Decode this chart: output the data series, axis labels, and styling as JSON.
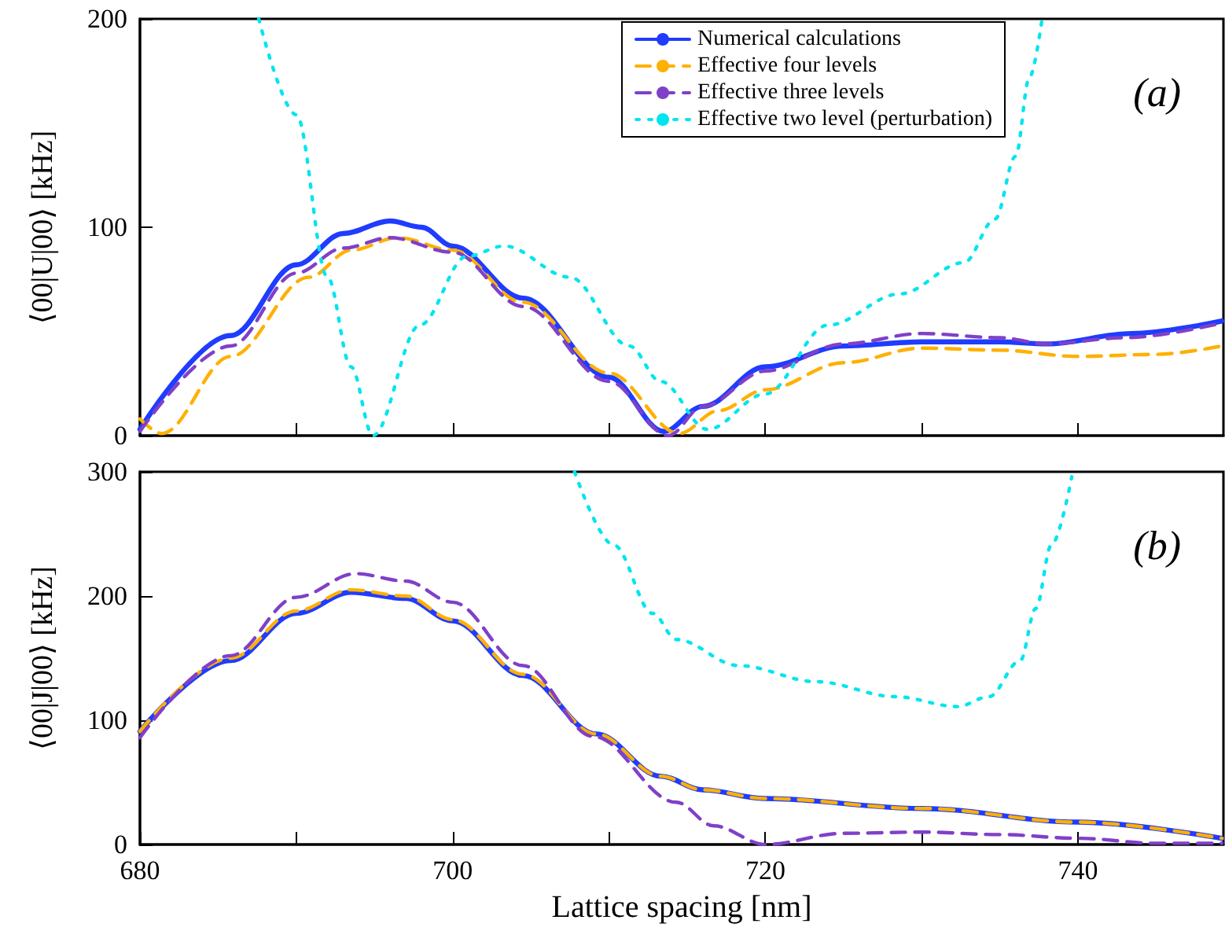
{
  "chart_data": [
    {
      "type": "line",
      "ylabel": "⟨00|U|00⟩ [kHz]",
      "xlim": [
        680,
        749.3
      ],
      "xticks": [
        680,
        690,
        700,
        710,
        720,
        730,
        740
      ],
      "ylim": [
        0,
        200
      ],
      "yticks": [
        0,
        100,
        200
      ],
      "tick_labels": "y",
      "legend": "top right",
      "grid": false,
      "annotations": [
        "(a)"
      ],
      "series": [
        {
          "name": "Numerical calculations",
          "color": "#1f3cff",
          "line_style": "solid",
          "x": [
            680,
            685.8,
            690,
            693,
            696,
            698,
            700,
            704.5,
            710,
            713.5,
            716,
            720,
            725,
            730,
            735,
            738,
            743.4,
            749.2
          ],
          "values": [
            3,
            48,
            82,
            97,
            103,
            100,
            91,
            66,
            28,
            2,
            14,
            33,
            43,
            45,
            45,
            44,
            49,
            55
          ]
        },
        {
          "name": "Effective four levels",
          "color": "#ffb000",
          "line_style": "dashed",
          "x": [
            680,
            681.4,
            685.8,
            690.8,
            693.5,
            696.5,
            700,
            704.5,
            710,
            714.5,
            717,
            720,
            725,
            730,
            735,
            740,
            745,
            749.2
          ],
          "values": [
            8,
            1,
            38,
            76,
            89,
            95,
            89,
            64,
            30,
            1,
            12,
            22,
            35,
            42,
            41,
            38,
            39,
            43
          ]
        },
        {
          "name": "Effective three levels",
          "color": "#8040c8",
          "line_style": "dashed",
          "x": [
            680,
            685.8,
            690,
            693,
            696,
            700,
            704.5,
            710,
            713.8,
            716,
            720,
            725,
            730,
            735,
            738,
            743,
            749.2
          ],
          "values": [
            2,
            43,
            78,
            90,
            95,
            88,
            62,
            26,
            0,
            14,
            31,
            44,
            49,
            47,
            44,
            47,
            54
          ]
        },
        {
          "name": "Effective two level (perturbation)",
          "color": "#00e5ee",
          "line_style": "dotted",
          "x": [
            687.6,
            690,
            692,
            693.5,
            694.9,
            697.9,
            700.9,
            703.3,
            707.5,
            711.3,
            713.3,
            716.3,
            720,
            724,
            728.6,
            732.7,
            734.7,
            736,
            736.9,
            737.7
          ],
          "values": [
            200,
            154,
            76,
            33,
            0,
            53,
            86,
            91,
            76,
            43,
            26,
            3,
            20,
            53,
            68,
            83,
            104,
            134,
            172,
            200
          ]
        }
      ]
    },
    {
      "type": "line",
      "xlabel": "Lattice spacing [nm]",
      "ylabel": "⟨00|J|00⟩ [kHz]",
      "xlim": [
        680,
        749.3
      ],
      "xticks": [
        680,
        {
          "value": 690,
          "label": null
        },
        700,
        {
          "value": 710,
          "label": null
        },
        720,
        {
          "value": 730,
          "label": null
        },
        740
      ],
      "ylim": [
        0,
        300
      ],
      "yticks": [
        0,
        100,
        200,
        300
      ],
      "grid": false,
      "annotations": [
        "(b)"
      ],
      "series": [
        {
          "color": "#1f3cff",
          "line_style": "solid",
          "x": [
            680,
            685.8,
            690,
            693.5,
            697,
            700,
            704.5,
            709.2,
            713.3,
            716,
            720,
            730,
            740,
            749.2
          ],
          "values": [
            91,
            148,
            186,
            203,
            198,
            180,
            136,
            89,
            55,
            44,
            37,
            29,
            18,
            5
          ]
        },
        {
          "color": "#ffb000",
          "line_style": "dashed",
          "x": [
            680,
            685.8,
            690,
            693.5,
            697,
            700,
            704.5,
            709.2,
            713.3,
            716,
            720,
            730,
            740,
            749.2
          ],
          "values": [
            91,
            150,
            188,
            205,
            200,
            181,
            137,
            89,
            55,
            44,
            37,
            29,
            18,
            5
          ]
        },
        {
          "color": "#8040c8",
          "line_style": "dashed",
          "x": [
            680,
            685.8,
            690,
            693.8,
            697,
            700,
            704.5,
            709,
            714.3,
            716.7,
            720,
            725,
            730,
            735,
            740,
            745,
            749.2
          ],
          "values": [
            86,
            152,
            199,
            218,
            212,
            195,
            144,
            87,
            34,
            15,
            0,
            9,
            10,
            8,
            5,
            1,
            1
          ]
        },
        {
          "color": "#00e5ee",
          "line_style": "dotted",
          "x": [
            707.8,
            710.3,
            712.8,
            714.3,
            718.3,
            723.3,
            728.3,
            732.3,
            734.3,
            736.3,
            737.3,
            738.3,
            739.6
          ],
          "values": [
            300,
            241,
            186,
            165,
            144,
            131,
            119,
            111,
            119,
            148,
            190,
            241,
            296
          ]
        }
      ]
    }
  ]
}
